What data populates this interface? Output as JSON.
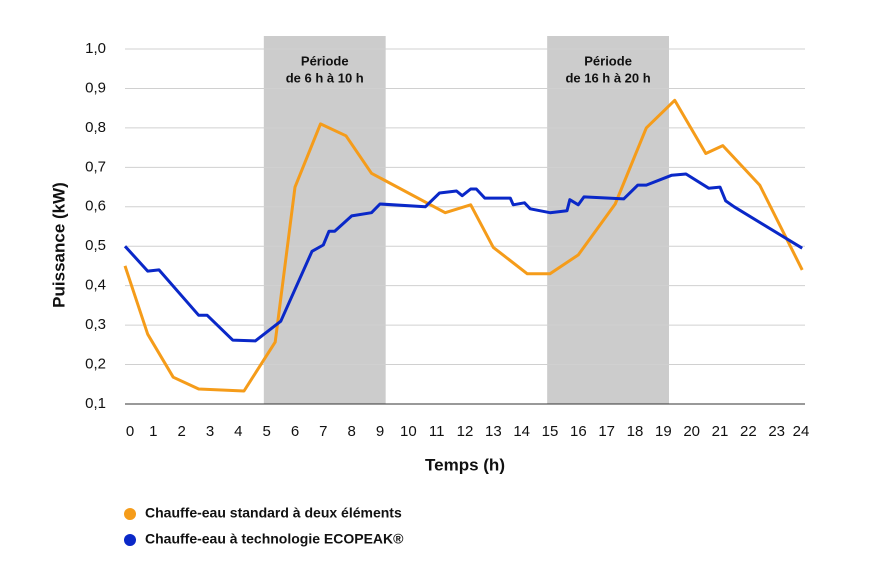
{
  "chart_data": {
    "type": "line",
    "y_label": "Puissance (kW)",
    "x_label": "Temps (h)",
    "xlim": [
      0,
      24
    ],
    "xticks": [
      0,
      1,
      2,
      3,
      4,
      5,
      6,
      7,
      8,
      9,
      10,
      11,
      12,
      13,
      14,
      15,
      16,
      17,
      18,
      19,
      20,
      21,
      22,
      23,
      24
    ],
    "ylim": [
      0.1,
      1.0
    ],
    "yticks": [
      {
        "value": 0.1,
        "label": "0,1"
      },
      {
        "value": 0.2,
        "label": "0,2"
      },
      {
        "value": 0.3,
        "label": "0,3"
      },
      {
        "value": 0.4,
        "label": "0,4"
      },
      {
        "value": 0.5,
        "label": "0,5"
      },
      {
        "value": 0.6,
        "label": "0,6"
      },
      {
        "value": 0.7,
        "label": "0,7"
      },
      {
        "value": 0.8,
        "label": "0,8"
      },
      {
        "value": 0.9,
        "label": "0,9"
      },
      {
        "value": 1.0,
        "label": "1,0"
      }
    ],
    "grid": true,
    "bands": [
      {
        "start": 4.9,
        "end": 9.2,
        "color": "#cccccc",
        "label": [
          "Période",
          "de 6 h à 10 h"
        ]
      },
      {
        "start": 14.9,
        "end": 19.2,
        "color": "#cccccc",
        "label": [
          "Période",
          "de 16 h à 20 h"
        ]
      }
    ],
    "series": [
      {
        "name": "Chauffe-eau standard à deux éléments",
        "color": "#f59c1a",
        "x": [
          0,
          0.8,
          1.7,
          2.6,
          4.2,
          5.3,
          6.0,
          6.9,
          7.8,
          8.7,
          11.3,
          12.2,
          13.0,
          14.2,
          15.0,
          16.0,
          17.3,
          18.4,
          19.4,
          20.5,
          21.1,
          22.4,
          23.9
        ],
        "values": [
          0.45,
          0.277,
          0.168,
          0.138,
          0.133,
          0.257,
          0.65,
          0.81,
          0.78,
          0.685,
          0.585,
          0.605,
          0.497,
          0.43,
          0.43,
          0.478,
          0.607,
          0.8,
          0.87,
          0.735,
          0.755,
          0.655,
          0.44
        ]
      },
      {
        "name": "Chauffe-eau à technologie ECOPEAK®",
        "color": "#0a28c8",
        "x": [
          0,
          0.8,
          1.2,
          2.6,
          2.9,
          3.8,
          4.6,
          5.5,
          6.6,
          7.0,
          7.2,
          7.4,
          8.0,
          8.7,
          9.0,
          10.6,
          11.1,
          11.7,
          11.9,
          12.2,
          12.4,
          12.7,
          13.6,
          13.7,
          14.1,
          14.3,
          15.0,
          15.6,
          15.7,
          16.0,
          16.2,
          17.6,
          18.1,
          18.4,
          19.3,
          19.8,
          20.6,
          21.0,
          21.2,
          21.5,
          23.9
        ],
        "values": [
          0.5,
          0.437,
          0.44,
          0.325,
          0.325,
          0.262,
          0.26,
          0.31,
          0.487,
          0.503,
          0.538,
          0.538,
          0.577,
          0.585,
          0.607,
          0.6,
          0.635,
          0.64,
          0.628,
          0.645,
          0.645,
          0.622,
          0.622,
          0.605,
          0.61,
          0.595,
          0.585,
          0.59,
          0.618,
          0.605,
          0.625,
          0.62,
          0.655,
          0.655,
          0.68,
          0.683,
          0.647,
          0.65,
          0.615,
          0.6,
          0.495
        ]
      }
    ]
  }
}
